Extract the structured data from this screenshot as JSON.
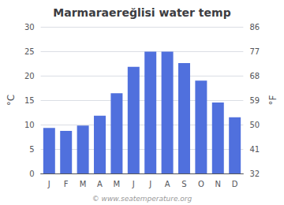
{
  "chart_data": {
    "type": "bar",
    "title": "Marmaraereğlisi water temp",
    "categories": [
      "J",
      "F",
      "M",
      "A",
      "M",
      "J",
      "J",
      "A",
      "S",
      "O",
      "N",
      "D"
    ],
    "values": [
      9.3,
      8.7,
      9.8,
      11.8,
      16.4,
      21.8,
      24.9,
      24.9,
      22.6,
      19.0,
      14.5,
      11.5
    ],
    "ylim": [
      0,
      30
    ],
    "yticks": [
      0,
      5,
      10,
      15,
      20,
      25,
      30
    ],
    "y2lim": [
      32,
      86
    ],
    "y2ticks": [
      32,
      41,
      50,
      59,
      68,
      77,
      86
    ],
    "ylabel": "°C",
    "y2label": "°F",
    "grid": true,
    "annotations": [
      "© www.seatemperature.org"
    ]
  }
}
